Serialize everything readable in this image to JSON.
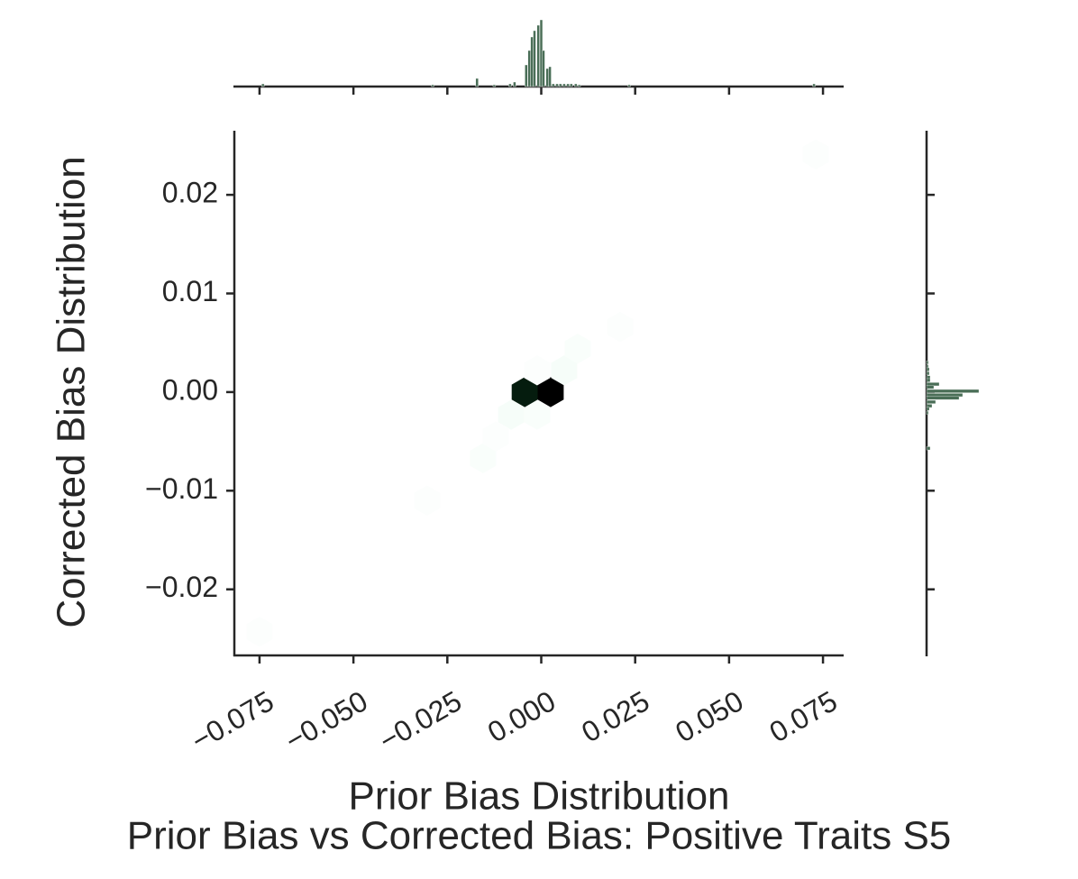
{
  "chart_data": {
    "type": "hexbin",
    "title": "Prior Bias vs Corrected Bias: Positive Traits S5",
    "xlabel": "Prior Bias Distribution",
    "ylabel": "Corrected Bias Distribution",
    "xlim": [
      -0.0817,
      0.0805
    ],
    "ylim": [
      -0.0267,
      0.0265
    ],
    "xticks": [
      {
        "value": -0.075,
        "label": "−0.075"
      },
      {
        "value": -0.05,
        "label": "−0.050"
      },
      {
        "value": -0.025,
        "label": "−0.025"
      },
      {
        "value": 0,
        "label": "0.000"
      },
      0.025,
      {
        "value": 0.05,
        "label": "0.050"
      },
      0.075
    ],
    "yticks": [
      {
        "value": -0.02,
        "label": "−0.02"
      },
      {
        "value": -0.01,
        "label": "−0.01"
      },
      {
        "value": 0,
        "label": "0.00"
      },
      0.01,
      0.02
    ],
    "colormap": [
      "#ffffff",
      "#d2f5e1",
      "#2e8b57",
      "#0a3d1e",
      "#000000"
    ],
    "hist_color": "#4a6e57",
    "x": [
      0.0731,
      -0.075,
      -0.0304,
      -0.0155,
      -0.0121,
      -0.008,
      -0.0011,
      -0.0044,
      0.0025,
      -0.0011,
      0.0061,
      0.0097,
      0.021
    ],
    "y": [
      0.0241,
      -0.0243,
      -0.011,
      -0.0067,
      -0.0045,
      -0.0023,
      -0.0023,
      0,
      0,
      0.0022,
      0.0022,
      0.0044,
      0.0066
    ],
    "counts": [
      1,
      1,
      1,
      2,
      1,
      3,
      2,
      55,
      62,
      1,
      3,
      2,
      1
    ],
    "top_hist": {
      "x": [
        -0.0741,
        -0.0289,
        -0.0171,
        -0.0125,
        -0.0083,
        -0.0071,
        -0.004,
        -0.0032,
        -0.0025,
        -0.0018,
        -0.0008,
        0,
        0.0006,
        0.0016,
        0.0023,
        0.0032,
        0.0042,
        0.0051,
        0.0061,
        0.0071,
        0.008,
        0.0092,
        0.0101,
        0.0234,
        0.0726
      ],
      "values": [
        3,
        2,
        9,
        2,
        3,
        5,
        24,
        40,
        55,
        62,
        68,
        74,
        40,
        20,
        22,
        3,
        3,
        3,
        3,
        3,
        3,
        3,
        2,
        2,
        3
      ],
      "bin_width": 0.0007
    },
    "right_hist": {
      "y": [
        0.003,
        0.0026,
        0.0023,
        0.0019,
        0.0015,
        0.0012,
        0.0008,
        0.0005,
        0.0001,
        -0.0003,
        -0.0006,
        -0.001,
        -0.0014,
        -0.0017,
        -0.0021,
        -0.0057
      ],
      "values": [
        2,
        2,
        3,
        3,
        4,
        4,
        14,
        8,
        58,
        40,
        36,
        10,
        6,
        3,
        2,
        4
      ],
      "bin_width": 0.00033
    }
  }
}
